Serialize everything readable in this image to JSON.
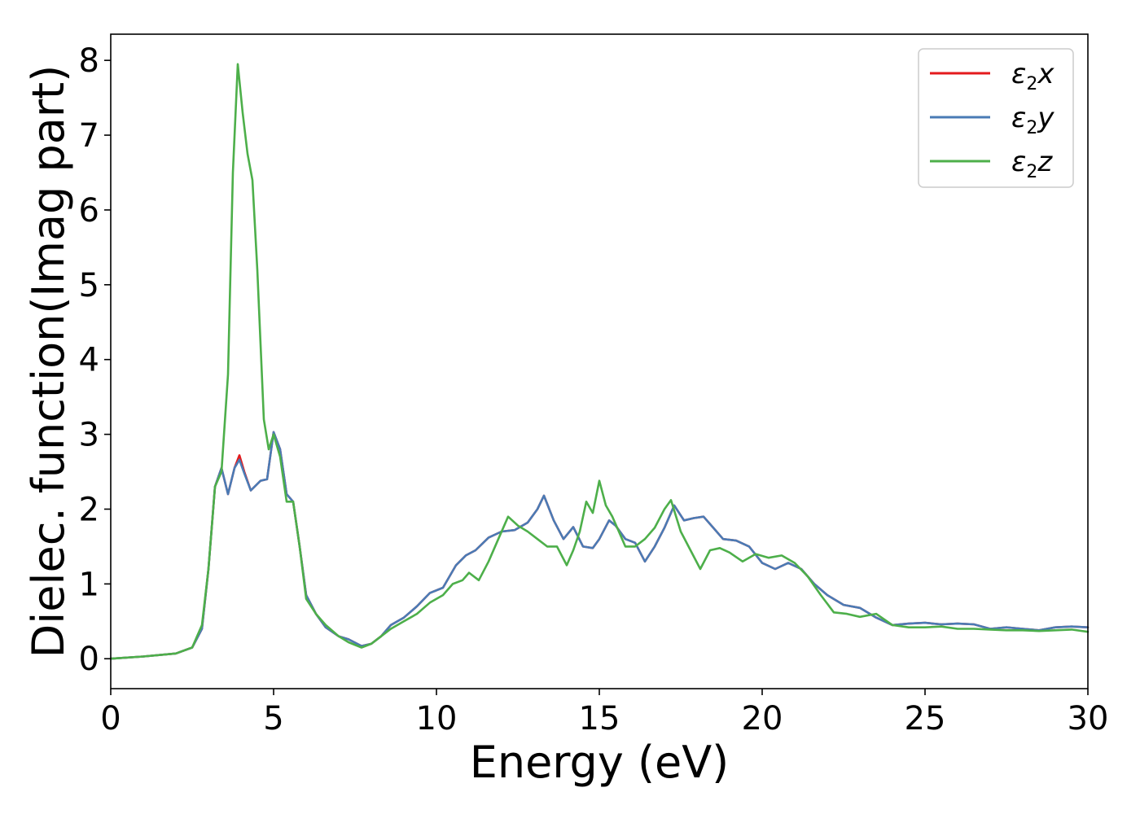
{
  "chart_data": {
    "type": "line",
    "xlabel": "Energy (eV)",
    "ylabel": "Dielec. function(Imag part)",
    "xlim": [
      0,
      30
    ],
    "ylim": [
      -0.4,
      8.35
    ],
    "xticks": [
      0,
      5,
      10,
      15,
      20,
      25,
      30
    ],
    "yticks": [
      0,
      1,
      2,
      3,
      4,
      5,
      6,
      7,
      8
    ],
    "grid": false,
    "legend_position": "top-right",
    "series": [
      {
        "name": "ε2x",
        "base": "ε",
        "sub": "2",
        "var": "x",
        "color": "#e41a1c",
        "x": [
          0,
          1,
          2,
          2.5,
          2.8,
          3.0,
          3.2,
          3.4,
          3.6,
          3.8,
          3.95,
          4.1,
          4.3,
          4.6,
          4.8,
          5.0,
          5.2,
          5.4,
          5.6,
          5.8,
          6.0,
          6.3,
          6.6,
          7.0,
          7.3,
          7.7,
          8.0,
          8.3,
          8.6,
          9.0,
          9.4,
          9.8,
          10.2,
          10.6,
          10.9,
          11.2,
          11.6,
          12.0,
          12.4,
          12.8,
          13.1,
          13.3,
          13.6,
          13.9,
          14.2,
          14.5,
          14.8,
          15.0,
          15.3,
          15.5,
          15.8,
          16.1,
          16.4,
          16.7,
          17.0,
          17.3,
          17.6,
          17.9,
          18.2,
          18.5,
          18.8,
          19.2,
          19.6,
          20.0,
          20.4,
          20.8,
          21.2,
          21.6,
          22.0,
          22.5,
          23.0,
          23.5,
          24.0,
          24.5,
          25.0,
          25.5,
          26.0,
          26.5,
          27.0,
          27.5,
          28.0,
          28.5,
          29.0,
          29.5,
          30
        ],
        "y": [
          0,
          0.03,
          0.07,
          0.15,
          0.4,
          1.2,
          2.3,
          2.55,
          2.2,
          2.55,
          2.72,
          2.5,
          2.25,
          2.38,
          2.4,
          3.03,
          2.8,
          2.2,
          2.1,
          1.5,
          0.85,
          0.6,
          0.42,
          0.3,
          0.26,
          0.17,
          0.2,
          0.3,
          0.45,
          0.55,
          0.7,
          0.88,
          0.95,
          1.25,
          1.38,
          1.45,
          1.62,
          1.7,
          1.72,
          1.82,
          2.0,
          2.18,
          1.85,
          1.6,
          1.76,
          1.5,
          1.48,
          1.6,
          1.85,
          1.78,
          1.6,
          1.55,
          1.3,
          1.5,
          1.75,
          2.05,
          1.85,
          1.88,
          1.9,
          1.75,
          1.6,
          1.58,
          1.5,
          1.28,
          1.2,
          1.28,
          1.2,
          1.0,
          0.85,
          0.72,
          0.68,
          0.55,
          0.45,
          0.47,
          0.48,
          0.46,
          0.47,
          0.46,
          0.4,
          0.42,
          0.4,
          0.38,
          0.42,
          0.43,
          0.42
        ]
      },
      {
        "name": "ε2y",
        "base": "ε",
        "sub": "2",
        "var": "y",
        "color": "#4a7bb5",
        "x": [
          0,
          1,
          2,
          2.5,
          2.8,
          3.0,
          3.2,
          3.4,
          3.6,
          3.8,
          3.95,
          4.1,
          4.3,
          4.6,
          4.8,
          5.0,
          5.2,
          5.4,
          5.6,
          5.8,
          6.0,
          6.3,
          6.6,
          7.0,
          7.3,
          7.7,
          8.0,
          8.3,
          8.6,
          9.0,
          9.4,
          9.8,
          10.2,
          10.6,
          10.9,
          11.2,
          11.6,
          12.0,
          12.4,
          12.8,
          13.1,
          13.3,
          13.6,
          13.9,
          14.2,
          14.5,
          14.8,
          15.0,
          15.3,
          15.5,
          15.8,
          16.1,
          16.4,
          16.7,
          17.0,
          17.3,
          17.6,
          17.9,
          18.2,
          18.5,
          18.8,
          19.2,
          19.6,
          20.0,
          20.4,
          20.8,
          21.2,
          21.6,
          22.0,
          22.5,
          23.0,
          23.5,
          24.0,
          24.5,
          25.0,
          25.5,
          26.0,
          26.5,
          27.0,
          27.5,
          28.0,
          28.5,
          29.0,
          29.5,
          30
        ],
        "y": [
          0,
          0.03,
          0.07,
          0.15,
          0.4,
          1.2,
          2.3,
          2.55,
          2.2,
          2.55,
          2.66,
          2.48,
          2.25,
          2.38,
          2.4,
          3.03,
          2.8,
          2.2,
          2.1,
          1.5,
          0.85,
          0.6,
          0.42,
          0.3,
          0.26,
          0.17,
          0.2,
          0.3,
          0.45,
          0.55,
          0.7,
          0.88,
          0.95,
          1.25,
          1.38,
          1.45,
          1.62,
          1.7,
          1.72,
          1.82,
          2.0,
          2.18,
          1.85,
          1.6,
          1.76,
          1.5,
          1.48,
          1.6,
          1.85,
          1.78,
          1.6,
          1.55,
          1.3,
          1.5,
          1.75,
          2.05,
          1.85,
          1.88,
          1.9,
          1.75,
          1.6,
          1.58,
          1.5,
          1.28,
          1.2,
          1.28,
          1.2,
          1.0,
          0.85,
          0.72,
          0.68,
          0.55,
          0.45,
          0.47,
          0.48,
          0.46,
          0.47,
          0.46,
          0.4,
          0.42,
          0.4,
          0.38,
          0.42,
          0.43,
          0.42
        ]
      },
      {
        "name": "ε2z",
        "base": "ε",
        "sub": "2",
        "var": "z",
        "color": "#4daf4a",
        "x": [
          0,
          1,
          2,
          2.5,
          2.8,
          3.0,
          3.2,
          3.4,
          3.6,
          3.75,
          3.9,
          4.05,
          4.2,
          4.35,
          4.5,
          4.7,
          4.85,
          5.0,
          5.2,
          5.4,
          5.6,
          5.8,
          6.0,
          6.3,
          6.6,
          7.0,
          7.3,
          7.7,
          8.0,
          8.3,
          8.6,
          9.0,
          9.4,
          9.8,
          10.2,
          10.5,
          10.8,
          11.0,
          11.3,
          11.6,
          11.9,
          12.2,
          12.5,
          12.8,
          13.1,
          13.4,
          13.7,
          14.0,
          14.2,
          14.4,
          14.6,
          14.8,
          15.0,
          15.2,
          15.4,
          15.6,
          15.8,
          16.1,
          16.4,
          16.7,
          17.0,
          17.2,
          17.5,
          17.8,
          18.1,
          18.4,
          18.7,
          19.0,
          19.4,
          19.8,
          20.2,
          20.6,
          21.0,
          21.4,
          21.8,
          22.2,
          22.6,
          23.0,
          23.5,
          24.0,
          24.5,
          25.0,
          25.5,
          26.0,
          26.5,
          27.0,
          27.5,
          28.0,
          28.5,
          29.0,
          29.5,
          30
        ],
        "y": [
          0,
          0.03,
          0.07,
          0.15,
          0.45,
          1.2,
          2.3,
          2.5,
          3.8,
          6.5,
          7.95,
          7.3,
          6.75,
          6.4,
          5.2,
          3.2,
          2.8,
          3.0,
          2.7,
          2.1,
          2.1,
          1.5,
          0.8,
          0.6,
          0.45,
          0.3,
          0.22,
          0.15,
          0.2,
          0.3,
          0.4,
          0.5,
          0.6,
          0.75,
          0.85,
          1.0,
          1.05,
          1.15,
          1.05,
          1.3,
          1.6,
          1.9,
          1.78,
          1.7,
          1.6,
          1.5,
          1.5,
          1.25,
          1.45,
          1.7,
          2.1,
          1.95,
          2.38,
          2.05,
          1.9,
          1.7,
          1.5,
          1.5,
          1.6,
          1.75,
          2.0,
          2.12,
          1.7,
          1.45,
          1.2,
          1.45,
          1.48,
          1.42,
          1.3,
          1.4,
          1.35,
          1.38,
          1.28,
          1.1,
          0.85,
          0.62,
          0.6,
          0.56,
          0.6,
          0.45,
          0.42,
          0.42,
          0.43,
          0.4,
          0.4,
          0.39,
          0.38,
          0.38,
          0.37,
          0.38,
          0.39,
          0.36
        ]
      }
    ]
  }
}
